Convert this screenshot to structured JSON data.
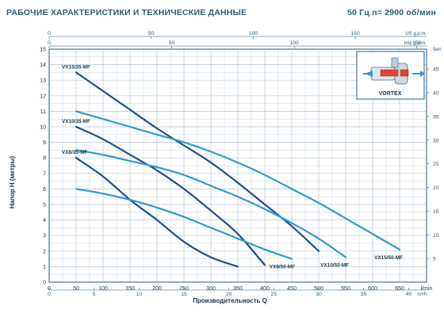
{
  "header": {
    "title": "РАБОЧИЕ ХАРАКТЕРИСТИКИ И ТЕХНИЧЕСКИЕ ДАННЫЕ",
    "spec": "50 Гц   n= 2900 об/мин"
  },
  "inset": {
    "label": "VORTEX",
    "icon": "vortex-pump-cutaway-icon"
  },
  "chart_data": {
    "type": "line",
    "xlabel": "Производительность Q",
    "ylabel": "Напор H (метры)",
    "xunit": "l/min",
    "xlim": [
      0,
      700
    ],
    "ylim": [
      0,
      15
    ],
    "x_ticks": [
      "0",
      "50",
      "100",
      "150",
      "200",
      "250",
      "300",
      "350",
      "400",
      "450",
      "500",
      "550",
      "600",
      "650",
      "l/min"
    ],
    "y_ticks": [
      "0",
      "1",
      "2",
      "3",
      "4",
      "5",
      "6",
      "7",
      "8",
      "9",
      "10",
      "11",
      "12",
      "13",
      "14",
      "15"
    ],
    "secondary_axes": {
      "us_gpm": {
        "unit": "US g.p.m.",
        "ticks": [
          "0",
          "50",
          "100",
          "150"
        ],
        "values": [
          0,
          50,
          100,
          150
        ]
      },
      "imp_gpm": {
        "unit": "Imp g.p.m.",
        "ticks": [
          "0",
          "50",
          "100",
          "150"
        ],
        "values": [
          0,
          50,
          100,
          150
        ]
      },
      "m3h": {
        "unit": "m³/h",
        "ticks": [
          "0",
          "5",
          "10",
          "15",
          "20",
          "25",
          "30",
          "35",
          "40"
        ],
        "values": [
          0,
          5,
          10,
          15,
          20,
          25,
          30,
          35,
          40
        ]
      },
      "feet": {
        "unit": "feet",
        "ticks": [
          "5",
          "10",
          "15",
          "20",
          "25",
          "30",
          "35",
          "40",
          "45"
        ],
        "values": [
          5,
          10,
          15,
          20,
          25,
          30,
          35,
          40,
          45
        ]
      }
    },
    "grid": true,
    "colors": {
      "dark": "#1f4f8e",
      "light": "#2e9ad3",
      "axis": "#2b5c7c",
      "grid": "#b8c9d6"
    },
    "series": [
      {
        "name": "VX8/35-MF",
        "color": "#1f4f8e",
        "points": [
          [
            50,
            8.0
          ],
          [
            100,
            6.8
          ],
          [
            150,
            5.3
          ],
          [
            200,
            4.0
          ],
          [
            250,
            2.6
          ],
          [
            300,
            1.6
          ],
          [
            350,
            1.0
          ]
        ]
      },
      {
        "name": "VX10/35-MF",
        "color": "#1f4f8e",
        "points": [
          [
            50,
            10.0
          ],
          [
            100,
            9.2
          ],
          [
            150,
            8.2
          ],
          [
            200,
            7.2
          ],
          [
            250,
            6.0
          ],
          [
            300,
            4.6
          ],
          [
            350,
            3.1
          ],
          [
            400,
            1.1
          ]
        ]
      },
      {
        "name": "VX15/35-MF",
        "color": "#1f4f8e",
        "points": [
          [
            50,
            13.5
          ],
          [
            100,
            12.3
          ],
          [
            150,
            11.1
          ],
          [
            200,
            9.9
          ],
          [
            250,
            8.8
          ],
          [
            300,
            7.7
          ],
          [
            350,
            6.4
          ],
          [
            400,
            5.0
          ],
          [
            450,
            3.6
          ],
          [
            500,
            2.0
          ]
        ]
      },
      {
        "name": "VX8/50-MF",
        "color": "#2e9ad3",
        "points": [
          [
            50,
            6.0
          ],
          [
            100,
            5.7
          ],
          [
            150,
            5.3
          ],
          [
            200,
            4.8
          ],
          [
            250,
            4.2
          ],
          [
            300,
            3.5
          ],
          [
            350,
            2.8
          ],
          [
            400,
            2.1
          ],
          [
            450,
            1.5
          ]
        ]
      },
      {
        "name": "VX10/50-MF",
        "color": "#2e9ad3",
        "points": [
          [
            50,
            8.5
          ],
          [
            100,
            8.2
          ],
          [
            150,
            7.8
          ],
          [
            200,
            7.4
          ],
          [
            250,
            6.9
          ],
          [
            300,
            6.2
          ],
          [
            350,
            5.5
          ],
          [
            400,
            4.7
          ],
          [
            450,
            3.8
          ],
          [
            500,
            2.8
          ],
          [
            550,
            1.6
          ]
        ]
      },
      {
        "name": "VX15/50-MF",
        "color": "#2e9ad3",
        "points": [
          [
            50,
            11.0
          ],
          [
            100,
            10.5
          ],
          [
            150,
            10.0
          ],
          [
            200,
            9.5
          ],
          [
            250,
            9.0
          ],
          [
            300,
            8.4
          ],
          [
            350,
            7.7
          ],
          [
            400,
            6.9
          ],
          [
            450,
            6.0
          ],
          [
            500,
            5.1
          ],
          [
            550,
            4.1
          ],
          [
            600,
            3.1
          ],
          [
            650,
            2.1
          ]
        ]
      }
    ],
    "series_labels": [
      "VX15/35-MF",
      "VX10/35-MF",
      "VX8/35-MF",
      "VX8/50-MF",
      "VX10/50-MF",
      "VX15/50-MF"
    ]
  }
}
